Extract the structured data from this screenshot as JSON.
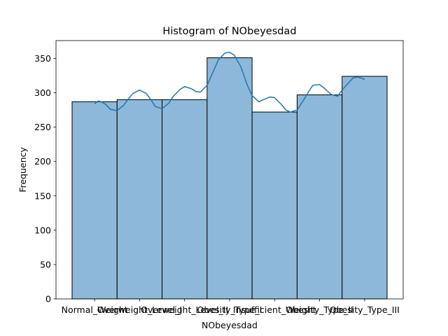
{
  "chart_data": {
    "type": "bar",
    "title": "Histogram of NObeyesdad",
    "xlabel": "NObeyesdad",
    "ylabel": "Frequency",
    "categories": [
      "Normal_Weight",
      "Overweight_Level_I",
      "Overweight_Level_II",
      "Obesity_Type_I",
      "Insufficient_Weight",
      "Obesity_Type_II",
      "Obesity_Type_III"
    ],
    "values": [
      287,
      290,
      290,
      351,
      272,
      297,
      324
    ],
    "ylim": [
      0,
      376
    ],
    "yticks": [
      0,
      50,
      100,
      150,
      200,
      250,
      300,
      350
    ],
    "kde": {
      "x": [
        0,
        0.08,
        0.15,
        0.25,
        0.35,
        0.5,
        0.65,
        0.75,
        0.85,
        1.0,
        1.15,
        1.25,
        1.35,
        1.5,
        1.65,
        1.75,
        1.9,
        2.0,
        2.15,
        2.25,
        2.35,
        2.5,
        2.65,
        2.75,
        2.9,
        3.0,
        3.1,
        3.25,
        3.4,
        3.5,
        3.65,
        3.75,
        3.9,
        4.0,
        4.15,
        4.25,
        4.35,
        4.5,
        4.65,
        4.75,
        4.85,
        5.0,
        5.1,
        5.25,
        5.4,
        5.5,
        5.65,
        5.75,
        5.85,
        5.95,
        6.0
      ],
      "y": [
        284,
        288,
        287,
        283,
        276,
        274,
        282,
        291,
        299,
        304,
        299,
        290,
        280,
        277,
        285,
        295,
        305,
        309,
        306,
        302,
        301,
        311,
        333,
        348,
        358,
        359,
        355,
        338,
        310,
        296,
        287,
        290,
        294,
        293,
        283,
        275,
        272,
        275,
        290,
        301,
        311,
        312,
        307,
        298,
        295,
        304,
        315,
        322,
        323,
        321,
        319
      ]
    },
    "colors": {
      "bar_fill": "#8db8d9",
      "bar_edge": "#000000",
      "kde_line": "#1f77b4"
    },
    "grid": false,
    "legend": "none"
  }
}
